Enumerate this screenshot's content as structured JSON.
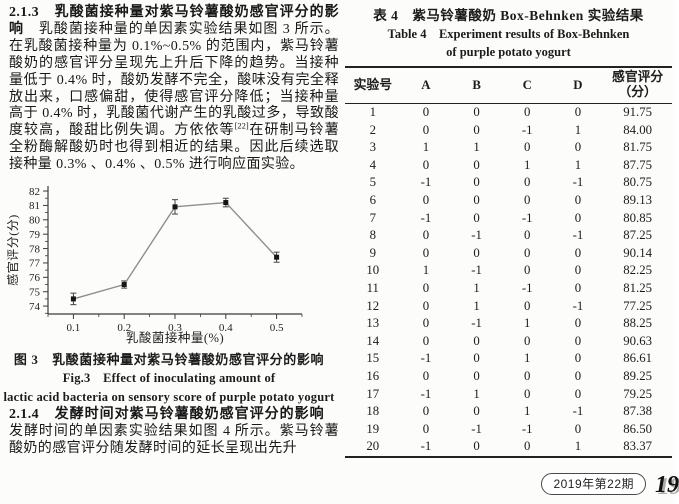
{
  "left_column": {
    "sec213": {
      "heading": "2.1.3　乳酸菌接种量对紫马铃薯酸奶感官评分的影响",
      "body": "　乳酸菌接种量的单因素实验结果如图 3 所示。在乳酸菌接种量为 0.1%~0.5% 的范围内，紫马铃薯酸奶的感官评分呈现先上升后下降的趋势。当接种量低于 0.4% 时，酸奶发酵不完全，酸味没有完全释放出来，口感偏甜，使得感官评分降低；当接种量高于 0.4% 时，乳酸菌代谢产生的乳酸过多，导致酸度较高，酸甜比例失调。方依依等",
      "citation": "[22]",
      "body2": "在研制马铃薯全粉酶解酸奶时也得到相近的结果。因此后续选取接种量 0.3% 、0.4% 、0.5% 进行响应面实验。"
    },
    "figure3": {
      "caption_cn": "图 3　乳酸菌接种量对紫马铃薯酸奶感官评分的影响",
      "caption_en1": "Fig.3　Effect of inoculating amount of",
      "caption_en2": "lactic acid bacteria on sensory score of purple potato yogurt"
    },
    "sec214": {
      "heading": "2.1.4　发酵时间对紫马铃薯酸奶感官评分的影响",
      "body": "　发酵时间的单因素实验结果如图 4 所示。紫马铃薯酸奶的感官评分随发酵时间的延长呈现出先升"
    }
  },
  "chart_data": {
    "type": "line",
    "title": "",
    "x": [
      0.1,
      0.2,
      0.3,
      0.4,
      0.5
    ],
    "series": [
      {
        "name": "感官评分",
        "values": [
          74.5,
          75.5,
          80.9,
          81.2,
          77.4
        ],
        "errors": [
          0.4,
          0.25,
          0.5,
          0.3,
          0.35
        ]
      }
    ],
    "xlabel": "乳酸菌接种量(%)",
    "ylabel": "感官评分(分)",
    "xlim": [
      0.05,
      0.55
    ],
    "ylim": [
      73.45,
      82.35
    ],
    "xticks": [
      0.1,
      0.2,
      0.3,
      0.4,
      0.5
    ],
    "yticks": [
      74,
      75,
      76,
      77,
      78,
      79,
      80,
      81,
      82
    ],
    "xminor": [
      0.05,
      0.15,
      0.25,
      0.35,
      0.45,
      0.55
    ],
    "yminor": [
      73.5,
      74.5,
      75.5,
      76.5,
      77.5,
      78.5,
      79.5,
      80.5,
      81.5
    ],
    "grid": false,
    "legend": "none",
    "line_color": "#8f8f8a",
    "marker_color": "#161616",
    "axis_color": "#3b3b3b",
    "text_color": "#222222"
  },
  "table4": {
    "title_cn": "表 4　紫马铃薯酸奶 Box-Behnken 实验结果",
    "title_en1": "Table 4　Experiment results of Box-Behnken",
    "title_en2": "of purple potato yogurt",
    "columns": [
      "实验号",
      "A",
      "B",
      "C",
      "D",
      "感官评分|（分）"
    ],
    "rows": [
      [
        "1",
        "0",
        "0",
        "0",
        "0",
        "91.75"
      ],
      [
        "2",
        "0",
        "0",
        "-1",
        "1",
        "84.00"
      ],
      [
        "3",
        "1",
        "1",
        "0",
        "0",
        "81.75"
      ],
      [
        "4",
        "0",
        "0",
        "1",
        "1",
        "87.75"
      ],
      [
        "5",
        "-1",
        "0",
        "0",
        "-1",
        "80.75"
      ],
      [
        "6",
        "0",
        "0",
        "0",
        "0",
        "89.13"
      ],
      [
        "7",
        "-1",
        "0",
        "-1",
        "0",
        "80.85"
      ],
      [
        "8",
        "0",
        "-1",
        "0",
        "-1",
        "87.25"
      ],
      [
        "9",
        "0",
        "0",
        "0",
        "0",
        "90.14"
      ],
      [
        "10",
        "1",
        "-1",
        "0",
        "0",
        "82.25"
      ],
      [
        "11",
        "0",
        "1",
        "-1",
        "0",
        "81.25"
      ],
      [
        "12",
        "0",
        "1",
        "0",
        "-1",
        "77.25"
      ],
      [
        "13",
        "0",
        "-1",
        "1",
        "0",
        "88.25"
      ],
      [
        "14",
        "0",
        "0",
        "0",
        "0",
        "90.63"
      ],
      [
        "15",
        "-1",
        "0",
        "1",
        "0",
        "86.61"
      ],
      [
        "16",
        "0",
        "0",
        "0",
        "0",
        "89.25"
      ],
      [
        "17",
        "-1",
        "1",
        "0",
        "0",
        "79.25"
      ],
      [
        "18",
        "0",
        "0",
        "1",
        "-1",
        "87.38"
      ],
      [
        "19",
        "0",
        "-1",
        "-1",
        "0",
        "86.50"
      ],
      [
        "20",
        "-1",
        "0",
        "0",
        "1",
        "83.37"
      ]
    ]
  },
  "footer": {
    "issue": "2019年第22期",
    "page_number": "19"
  }
}
